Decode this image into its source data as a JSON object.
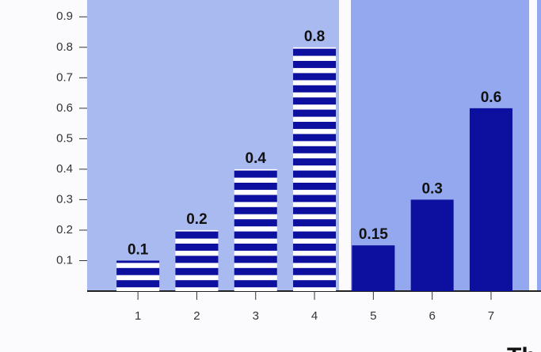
{
  "chart_data": {
    "type": "bar",
    "categories": [
      "1",
      "2",
      "3",
      "4",
      "5",
      "6",
      "7"
    ],
    "values": [
      0.1,
      0.2,
      0.4,
      0.8,
      0.15,
      0.3,
      0.6
    ],
    "bar_fill": [
      "striped",
      "striped",
      "striped",
      "striped",
      "solid",
      "solid",
      "solid"
    ],
    "color": "#0d0f9e",
    "ylim": [
      0,
      0.95
    ],
    "yticks": [
      0.1,
      0.2,
      0.3,
      0.4,
      0.5,
      0.6,
      0.7,
      0.8,
      0.9
    ],
    "caption": "Th"
  }
}
